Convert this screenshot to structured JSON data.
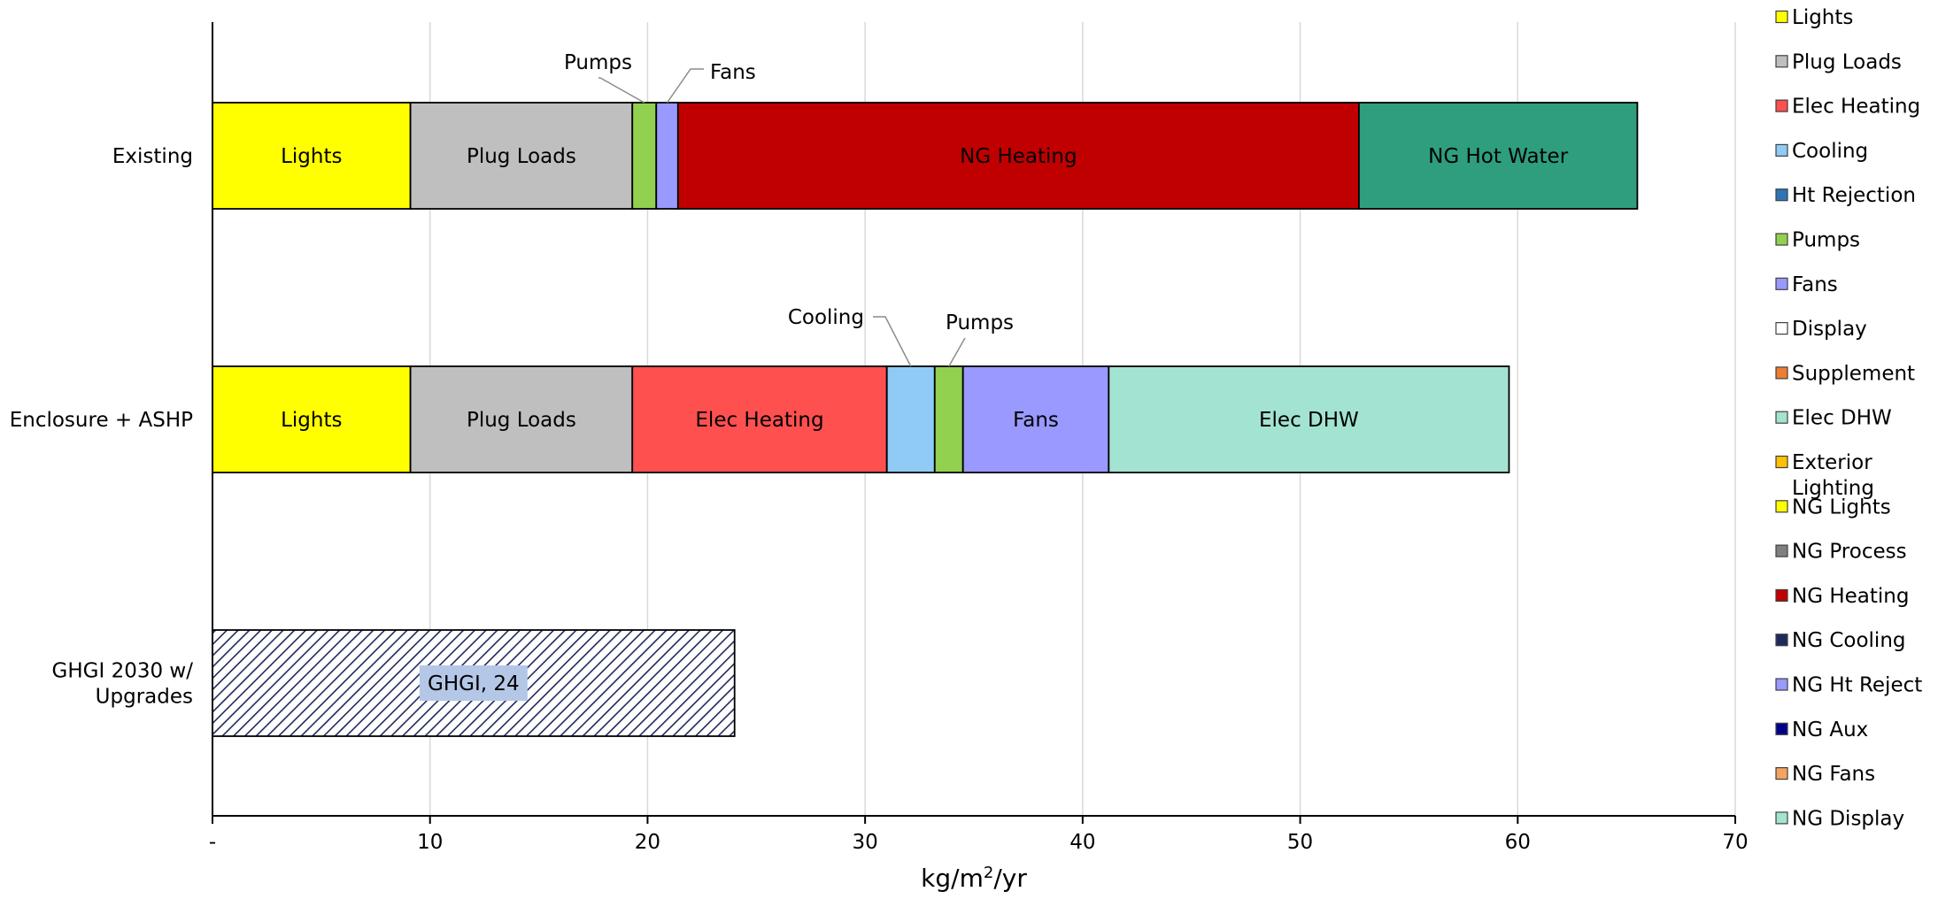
{
  "chart_data": {
    "type": "bar",
    "orientation": "horizontal",
    "stacked": true,
    "xlabel_parts": {
      "base": "kg/m",
      "sup": "2",
      "tail": "/yr"
    },
    "xlim": [
      0,
      70
    ],
    "x_ticks": [
      "-",
      "10",
      "20",
      "30",
      "40",
      "50",
      "60",
      "70"
    ],
    "x_tick_values": [
      0,
      10,
      20,
      30,
      40,
      50,
      60,
      70
    ],
    "grid": "vertical",
    "legend_position": "right",
    "categories": [
      {
        "label_lines": [
          "Existing"
        ]
      },
      {
        "label_lines": [
          "Enclosure + ASHP"
        ]
      },
      {
        "label_lines": [
          "GHGI 2030 w/",
          "Upgrades"
        ]
      }
    ],
    "bars": [
      {
        "category": "Existing",
        "segments": [
          {
            "series": "Lights",
            "value": 9.1,
            "color": "#FFFF00",
            "label": "Lights"
          },
          {
            "series": "Plug Loads",
            "value": 10.2,
            "color": "#BFBFBF",
            "label": "Plug Loads"
          },
          {
            "series": "Pumps",
            "value": 1.1,
            "color": "#92D050",
            "callout": "Pumps"
          },
          {
            "series": "Fans",
            "value": 1.0,
            "color": "#9999FF",
            "callout": "Fans"
          },
          {
            "series": "NG Heating",
            "value": 31.3,
            "color": "#C00000",
            "label": "NG Heating"
          },
          {
            "series": "NG Hot Water",
            "value": 12.8,
            "color": "#2E9E7E",
            "label": "NG Hot Water"
          }
        ]
      },
      {
        "category": "Enclosure + ASHP",
        "segments": [
          {
            "series": "Lights",
            "value": 9.1,
            "color": "#FFFF00",
            "label": "Lights"
          },
          {
            "series": "Plug Loads",
            "value": 10.2,
            "color": "#BFBFBF",
            "label": "Plug Loads"
          },
          {
            "series": "Elec Heating",
            "value": 11.7,
            "color": "#FF5050",
            "label": "Elec Heating"
          },
          {
            "series": "Cooling",
            "value": 2.2,
            "color": "#8FCBF5",
            "callout": "Cooling"
          },
          {
            "series": "Pumps",
            "value": 1.3,
            "color": "#92D050",
            "callout": "Pumps"
          },
          {
            "series": "Fans",
            "value": 6.7,
            "color": "#9999FF",
            "label": "Fans"
          },
          {
            "series": "Elec DHW",
            "value": 18.4,
            "color": "#A3E3D1",
            "label": "Elec DHW"
          }
        ]
      },
      {
        "category": "GHGI 2030 w/ Upgrades",
        "segments": [
          {
            "series": "GHGI",
            "value": 24,
            "hatched": true,
            "label": "GHGI, 24"
          }
        ]
      }
    ],
    "legend": [
      {
        "name": "Lights",
        "color": "#FFFF00"
      },
      {
        "name": "Plug Loads",
        "color": "#BFBFBF"
      },
      {
        "name": "Elec Heating",
        "color": "#FF5050"
      },
      {
        "name": "Cooling",
        "color": "#8FCBF5"
      },
      {
        "name": "Ht Rejection",
        "color": "#2E75B6"
      },
      {
        "name": "Pumps",
        "color": "#92D050"
      },
      {
        "name": "Fans",
        "color": "#9999FF"
      },
      {
        "name": "Display",
        "color": "#FFFFFF"
      },
      {
        "name": "Supplement",
        "color": "#ED7D31"
      },
      {
        "name": "Elec DHW",
        "color": "#A3E3D1"
      },
      {
        "name": "Exterior Lighting",
        "color": "#FFC000"
      },
      {
        "name": "NG Lights",
        "color": "#FFFF00"
      },
      {
        "name": "NG Process",
        "color": "#808080"
      },
      {
        "name": "NG Heating",
        "color": "#C00000"
      },
      {
        "name": "NG Cooling",
        "color": "#1F2A5C"
      },
      {
        "name": "NG Ht Reject",
        "color": "#9999FF"
      },
      {
        "name": "NG Aux",
        "color": "#00008B"
      },
      {
        "name": "NG Fans",
        "color": "#F4A460"
      },
      {
        "name": "NG Display",
        "color": "#A3E3D1"
      }
    ],
    "hatch_colors": {
      "line": "#1F2A5C",
      "fill": "#FFFFFF",
      "label_bg": "#B4C7E7"
    }
  }
}
